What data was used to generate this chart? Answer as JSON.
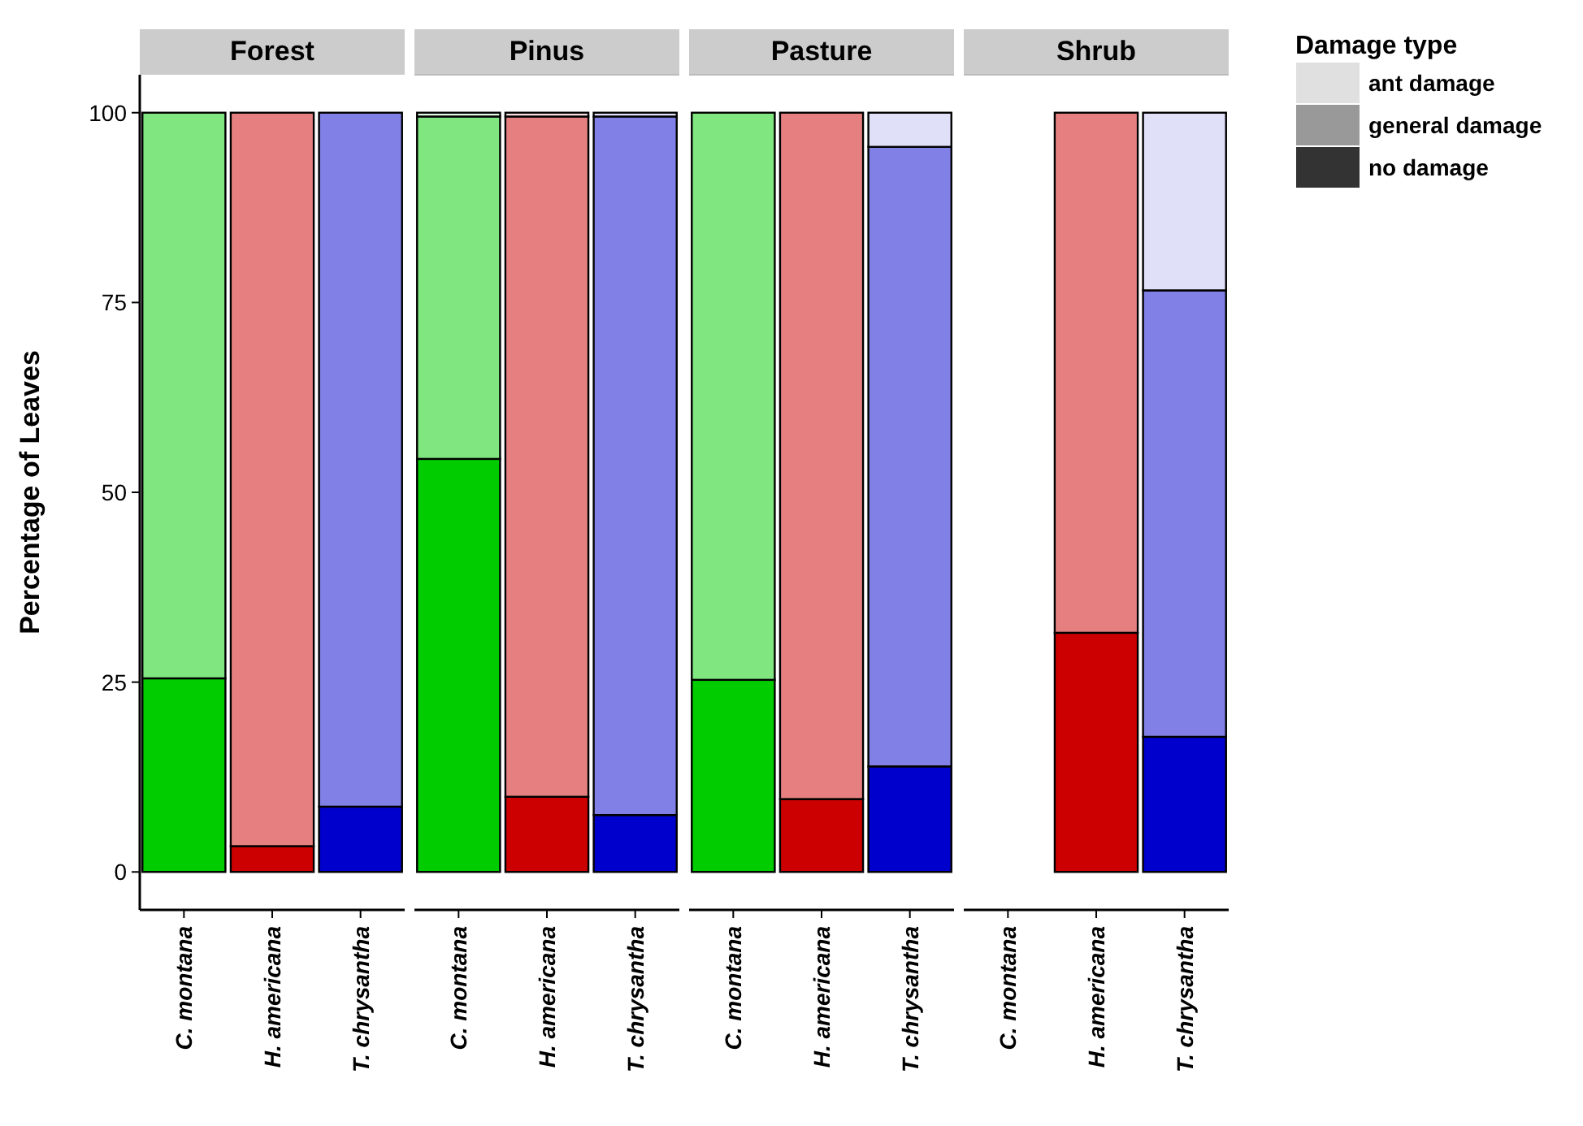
{
  "chart_data": [
    {
      "type": "bar",
      "stacked": true,
      "title": "Forest",
      "ylabel": "Percentage of Leaves",
      "categories": [
        "C. montana",
        "H. americana",
        "T. chrysantha"
      ],
      "ylim": [
        -5,
        105
      ],
      "yticks": [
        0,
        25,
        50,
        75,
        100
      ],
      "series": [
        {
          "colors": [
            "#00cc00",
            "#cc0000",
            "#0000cc"
          ],
          "values": [
            25.5,
            3.4,
            8.6
          ]
        },
        {
          "colors": [
            "#80e680",
            "#e68080",
            "#8080e6"
          ],
          "values": [
            74.5,
            96.6,
            91.4
          ]
        }
      ]
    },
    {
      "type": "bar",
      "stacked": true,
      "title": "Pinus",
      "categories": [
        "C. montana",
        "H. americana",
        "T. chrysantha"
      ],
      "ylim": [
        -5,
        105
      ],
      "yticks": [
        0,
        25,
        50,
        75,
        100
      ],
      "tick_labels": "x",
      "series": [
        {
          "colors": [
            "#00cc00",
            "#cc0000",
            "#0000cc"
          ],
          "values": [
            54.4,
            9.9,
            7.5
          ]
        },
        {
          "colors": [
            "#80e680",
            "#e68080",
            "#8080e6"
          ],
          "values": [
            45.1,
            89.6,
            92
          ]
        },
        {
          "colors": [
            "#e0f8e0",
            "#f8e0e0",
            "#e0e0f8"
          ],
          "values": [
            0.5,
            0.5,
            0.5
          ]
        }
      ]
    },
    {
      "type": "bar",
      "stacked": true,
      "title": "Pasture",
      "categories": [
        "C. montana",
        "H. americana",
        "T. chrysantha"
      ],
      "ylim": [
        -5,
        105
      ],
      "yticks": [
        0,
        25,
        50,
        75,
        100
      ],
      "tick_labels": "x",
      "series": [
        {
          "colors": [
            "#00cc00",
            "#cc0000",
            "#0000cc"
          ],
          "values": [
            25.3,
            9.6,
            13.9
          ]
        },
        {
          "colors": [
            "#80e680",
            "#e68080",
            "#8080e6"
          ],
          "values": [
            74.7,
            90.4,
            81.6
          ]
        },
        {
          "colors": [
            null,
            null,
            "#e0e0f8"
          ],
          "values": [
            null,
            null,
            4.5
          ]
        }
      ]
    },
    {
      "type": "bar",
      "stacked": true,
      "title": "Shrub",
      "categories": [
        "C. montana",
        "H. americana",
        "T. chrysantha"
      ],
      "ylim": [
        -5,
        105
      ],
      "yticks": [
        0,
        25,
        50,
        75,
        100
      ],
      "tick_labels": "x",
      "legend": "right",
      "legend_title": "Damage type",
      "series": [
        {
          "name": "no damage",
          "color": "#333333",
          "colors": [
            null,
            "#cc0000",
            "#0000cc"
          ],
          "values": [
            null,
            31.5,
            17.8
          ]
        },
        {
          "name": "general damage",
          "color": "#999999",
          "colors": [
            null,
            "#e68080",
            "#8080e6"
          ],
          "values": [
            null,
            68.5,
            58.8
          ]
        },
        {
          "name": "ant damage",
          "color": "#e0e0e0",
          "colors": [
            null,
            null,
            "#e0e0f8"
          ],
          "values": [
            null,
            null,
            23.4
          ]
        }
      ]
    }
  ]
}
